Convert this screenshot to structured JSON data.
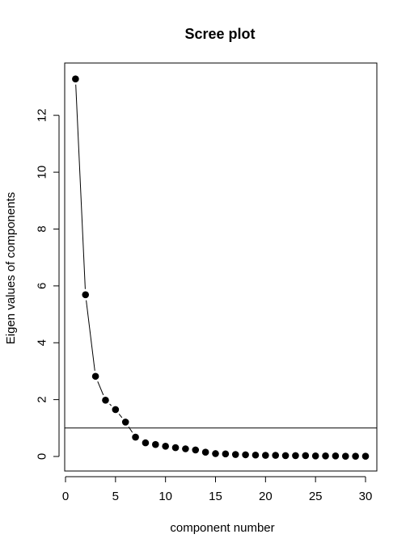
{
  "chart_data": {
    "type": "scatter",
    "title": "Scree plot",
    "xlabel": "component number",
    "ylabel": "Eigen values of components",
    "xlim": [
      0,
      30
    ],
    "ylim": [
      0,
      13.3
    ],
    "xticks": [
      0,
      5,
      10,
      15,
      20,
      25,
      30
    ],
    "yticks": [
      0,
      2,
      4,
      6,
      8,
      10,
      12
    ],
    "grid": false,
    "legend": "none",
    "reference_line": {
      "orientation": "horizontal",
      "y": 1
    },
    "connecting_line": true,
    "point_color": "#000000",
    "line_color": "#000000",
    "series": [
      {
        "x": [
          1,
          2,
          3,
          4,
          5,
          6,
          7,
          8,
          9,
          10,
          11,
          12,
          13,
          14,
          15,
          16,
          17,
          18,
          19,
          20,
          21,
          22,
          23,
          24,
          25,
          26,
          27,
          28,
          29,
          30
        ],
        "values": [
          13.28,
          5.69,
          2.82,
          1.98,
          1.65,
          1.21,
          0.68,
          0.48,
          0.42,
          0.36,
          0.31,
          0.27,
          0.23,
          0.15,
          0.1,
          0.09,
          0.07,
          0.06,
          0.05,
          0.04,
          0.04,
          0.03,
          0.03,
          0.03,
          0.02,
          0.02,
          0.02,
          0.01,
          0.01,
          0.01
        ]
      }
    ]
  }
}
